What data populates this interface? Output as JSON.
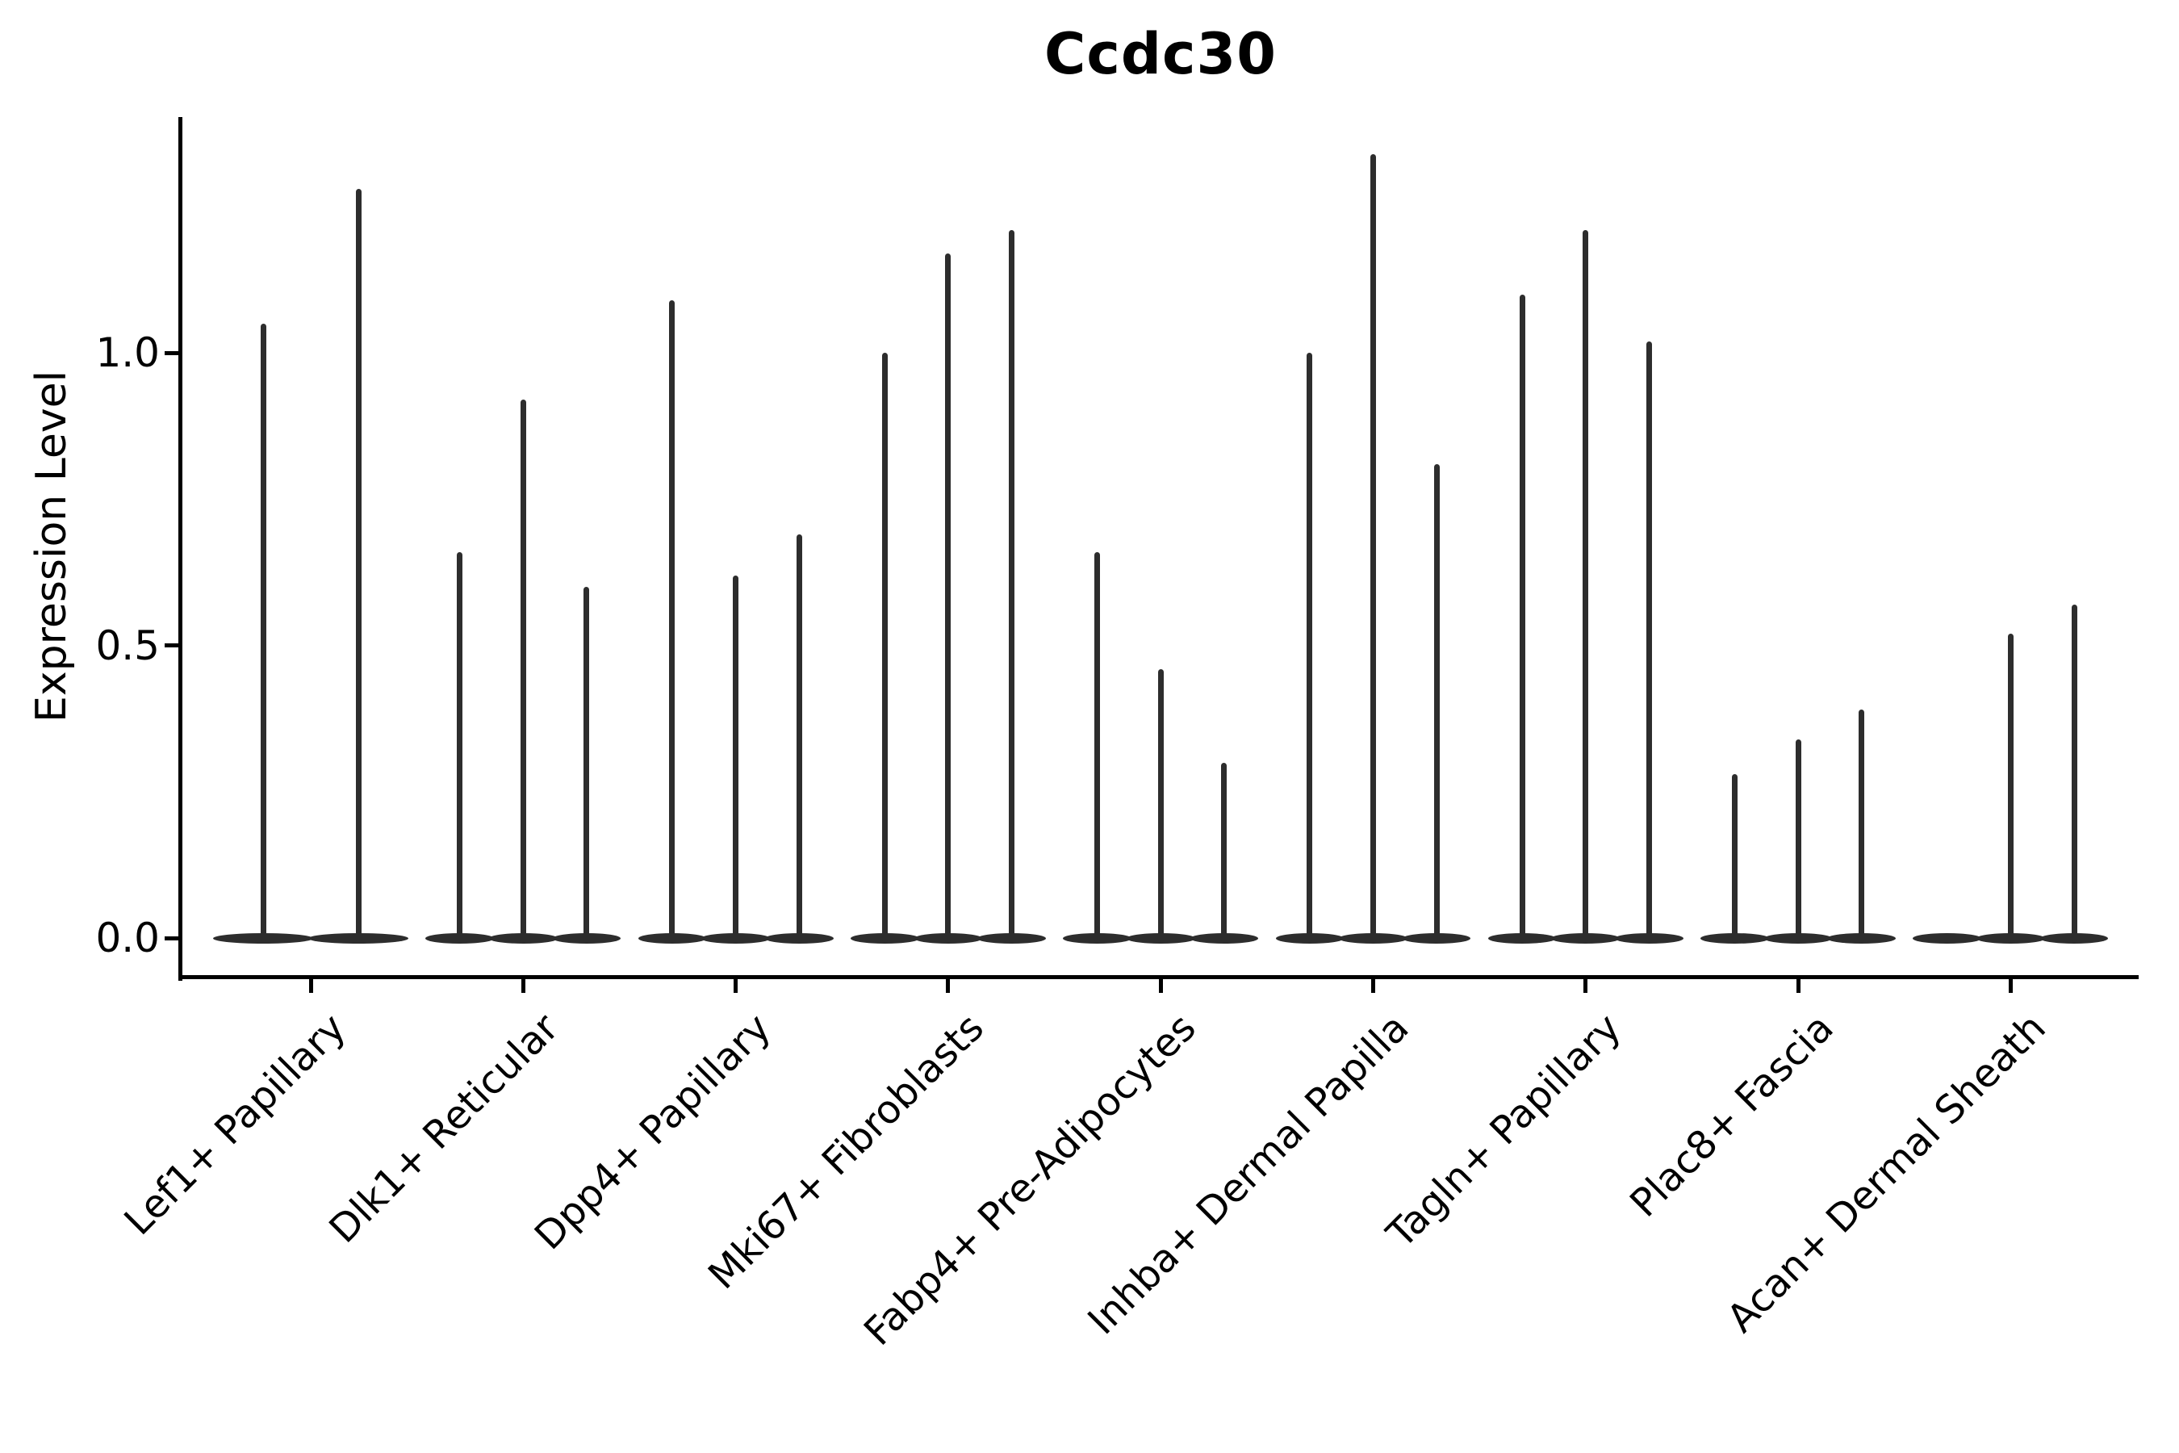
{
  "title": "Ccdc30",
  "y_axis": {
    "label": "Expression Level",
    "tick_values": [
      0.0,
      0.5,
      1.0
    ]
  },
  "chart_data": {
    "type": "violin",
    "title": "Ccdc30",
    "xlabel": "",
    "ylabel": "Expression Level",
    "yticks": [
      0.0,
      0.5,
      1.0
    ],
    "ylim": [
      0,
      1.41
    ],
    "grid": false,
    "legend_position": "none",
    "categories": [
      "Lef1+ Papillary",
      "Dlk1+ Reticular",
      "Dpp4+ Papillary",
      "Mki67+ Fibroblasts",
      "Fabp4+ Pre-Adipocytes",
      "Inhba+ Dermal Papilla",
      "Tagln+ Papillary",
      "Plac8+ Fascia",
      "Acan+ Dermal Sheath"
    ],
    "series": [
      {
        "category": "Lef1+ Papillary",
        "violin_peaks": [
          1.05,
          1.28
        ]
      },
      {
        "category": "Dlk1+ Reticular",
        "violin_peaks": [
          0.66,
          0.92,
          0.6
        ]
      },
      {
        "category": "Dpp4+ Papillary",
        "violin_peaks": [
          1.09,
          0.62,
          0.69
        ]
      },
      {
        "category": "Mki67+ Fibroblasts",
        "violin_peaks": [
          1.0,
          1.17,
          1.21
        ]
      },
      {
        "category": "Fabp4+ Pre-Adipocytes",
        "violin_peaks": [
          0.66,
          0.46,
          0.3
        ]
      },
      {
        "category": "Inhba+ Dermal Papilla",
        "violin_peaks": [
          1.0,
          1.34,
          0.81
        ]
      },
      {
        "category": "Tagln+ Papillary",
        "violin_peaks": [
          1.1,
          1.21,
          1.02
        ]
      },
      {
        "category": "Plac8+ Fascia",
        "violin_peaks": [
          0.28,
          0.34,
          0.39
        ]
      },
      {
        "category": "Acan+ Dermal Sheath",
        "violin_peaks": [
          0.0,
          0.52,
          0.57
        ]
      }
    ],
    "note": "Each violin's density mass sits at 0 expression with a thin spike rising to its peak value; violins are colored dark gray."
  },
  "colors": {
    "violin": "#2d2d2d",
    "axis": "#000000",
    "text": "#000000",
    "background": "#ffffff"
  }
}
